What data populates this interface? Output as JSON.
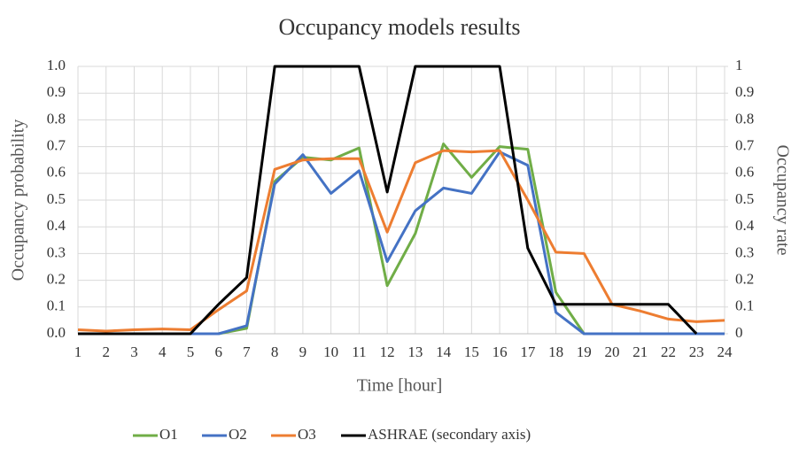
{
  "chart_data": {
    "type": "line",
    "title": "Occupancy models results",
    "xlabel": "Time [hour]",
    "ylabel": "Occupancy probability",
    "y2label": "Occupancy rate",
    "x": [
      1,
      2,
      3,
      4,
      5,
      6,
      7,
      8,
      9,
      10,
      11,
      12,
      13,
      14,
      15,
      16,
      17,
      18,
      19,
      20,
      21,
      22,
      23,
      24
    ],
    "xlim": [
      1,
      24
    ],
    "xticks": [
      1,
      2,
      3,
      4,
      5,
      6,
      7,
      8,
      9,
      10,
      11,
      12,
      13,
      14,
      15,
      16,
      17,
      18,
      19,
      20,
      21,
      22,
      23,
      24
    ],
    "ylim": [
      0,
      1
    ],
    "yticks": [
      {
        "value": 0,
        "label": "0.0"
      },
      0.1,
      0.2,
      0.3,
      0.4,
      0.5,
      0.6,
      0.7,
      0.8,
      0.9,
      {
        "value": 1,
        "label": "1.0"
      }
    ],
    "y2lim": [
      0,
      1
    ],
    "y2ticks": [
      0,
      0.1,
      0.2,
      0.3,
      0.4,
      0.5,
      0.6,
      0.7,
      0.8,
      0.9,
      1
    ],
    "grid": true,
    "legend": "bottom",
    "series": [
      {
        "name": "O1",
        "color": "#70ad47",
        "values": [
          0,
          0,
          0,
          0,
          0,
          0,
          0.02,
          0.57,
          0.66,
          0.65,
          0.695,
          0.18,
          0.375,
          0.71,
          0.585,
          0.7,
          0.69,
          0.155,
          0,
          0,
          0,
          0,
          0,
          0
        ]
      },
      {
        "name": "O2",
        "color": "#4472c4",
        "values": [
          0,
          0,
          0,
          0,
          0,
          0,
          0.03,
          0.56,
          0.67,
          0.525,
          0.61,
          0.27,
          0.46,
          0.545,
          0.525,
          0.68,
          0.63,
          0.08,
          0,
          0,
          0,
          0,
          0,
          0
        ]
      },
      {
        "name": "O3",
        "color": "#ed7d31",
        "values": [
          0.015,
          0.01,
          0.015,
          0.018,
          0.015,
          0.09,
          0.16,
          0.615,
          0.65,
          0.655,
          0.655,
          0.38,
          0.64,
          0.685,
          0.68,
          0.685,
          0.5,
          0.305,
          0.3,
          0.11,
          0.085,
          0.055,
          0.045,
          0.05
        ]
      },
      {
        "name": "ASHRAE (secondary axis)",
        "color": "#000000",
        "axis": "y2",
        "values": [
          0,
          0,
          0,
          0,
          0,
          0.11,
          0.21,
          1,
          1,
          1,
          1,
          0.53,
          1,
          1,
          1,
          1,
          0.32,
          0.11,
          0.11,
          0.11,
          0.11,
          0.11,
          0,
          null
        ]
      }
    ]
  }
}
